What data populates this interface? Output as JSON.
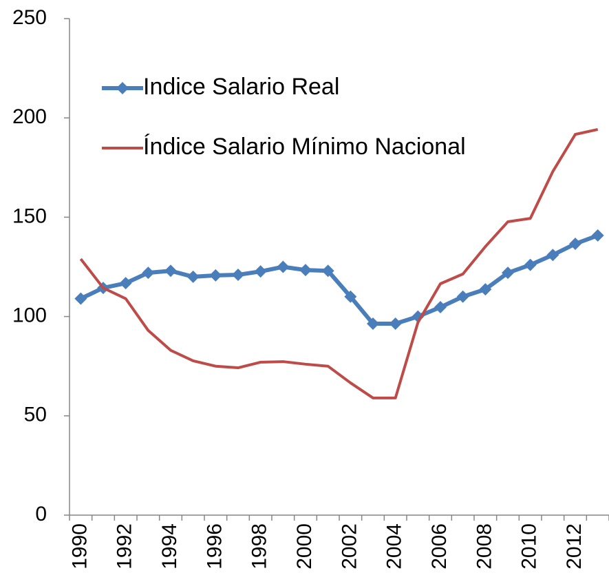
{
  "chart_data": {
    "type": "line",
    "categories": [
      "1990",
      null,
      "1992",
      null,
      "1994",
      null,
      "1996",
      null,
      "1998",
      null,
      "2000",
      null,
      "2002",
      null,
      "2004",
      null,
      "2006",
      null,
      "2008",
      null,
      "2010",
      null,
      "2012",
      null
    ],
    "series": [
      {
        "name": "Indice Salario Real",
        "color": "#4a7ebb",
        "marker": "diamond",
        "values": [
          109,
          114.4,
          116.8,
          122,
          123,
          120,
          120.7,
          121,
          122.7,
          125,
          123.4,
          123,
          110,
          96.4,
          96.4,
          100,
          104.7,
          110,
          113.7,
          122,
          126,
          131,
          136.6,
          140.8
        ]
      },
      {
        "name": "Índice Salario Mínimo Nacional",
        "color": "#be4b48",
        "values": [
          129,
          114.4,
          109,
          93,
          83,
          77.7,
          75,
          74.2,
          77,
          77.3,
          76,
          75,
          66.6,
          59,
          59,
          97,
          116.5,
          121.4,
          135.2,
          147.7,
          149.4,
          173,
          191.7,
          194.2
        ]
      }
    ],
    "ylim": [
      0,
      250
    ],
    "yticks": [
      0,
      50,
      100,
      150,
      200,
      250
    ],
    "grid": false,
    "legend": "top-left"
  }
}
